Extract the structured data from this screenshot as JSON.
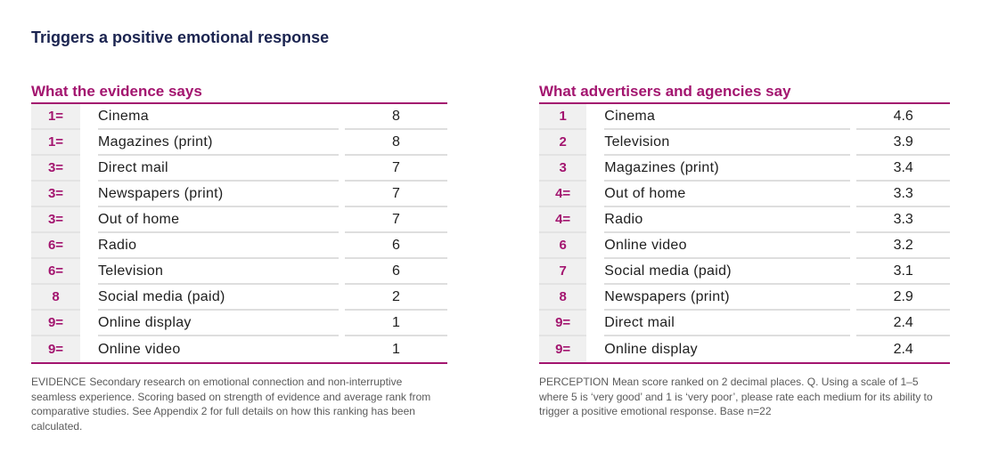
{
  "title": "Triggers a positive emotional response",
  "evidence": {
    "heading": "What the evidence says",
    "rows": [
      {
        "rank": "1=",
        "medium": "Cinema",
        "score": "8"
      },
      {
        "rank": "1=",
        "medium": "Magazines (print)",
        "score": "8"
      },
      {
        "rank": "3=",
        "medium": "Direct mail",
        "score": "7"
      },
      {
        "rank": "3=",
        "medium": "Newspapers (print)",
        "score": "7"
      },
      {
        "rank": "3=",
        "medium": "Out of home",
        "score": "7"
      },
      {
        "rank": "6=",
        "medium": "Radio",
        "score": "6"
      },
      {
        "rank": "6=",
        "medium": "Television",
        "score": "6"
      },
      {
        "rank": "8",
        "medium": "Social media (paid)",
        "score": "2"
      },
      {
        "rank": "9=",
        "medium": "Online display",
        "score": "1"
      },
      {
        "rank": "9=",
        "medium": "Online video",
        "score": "1"
      }
    ],
    "footnote_tag": "EVIDENCE",
    "footnote": "Secondary research on emotional connection and non-interruptive seamless experience. Scoring based on strength of evidence and average rank from comparative studies. See Appendix 2 for full details on how this ranking has been calculated."
  },
  "perception": {
    "heading": "What advertisers and agencies say",
    "rows": [
      {
        "rank": "1",
        "medium": "Cinema",
        "score": "4.6"
      },
      {
        "rank": "2",
        "medium": "Television",
        "score": "3.9"
      },
      {
        "rank": "3",
        "medium": "Magazines (print)",
        "score": "3.4"
      },
      {
        "rank": "4=",
        "medium": "Out of home",
        "score": "3.3"
      },
      {
        "rank": "4=",
        "medium": "Radio",
        "score": "3.3"
      },
      {
        "rank": "6",
        "medium": "Online video",
        "score": "3.2"
      },
      {
        "rank": "7",
        "medium": "Social media (paid)",
        "score": "3.1"
      },
      {
        "rank": "8",
        "medium": "Newspapers (print)",
        "score": "2.9"
      },
      {
        "rank": "9=",
        "medium": "Direct mail",
        "score": "2.4"
      },
      {
        "rank": "9=",
        "medium": "Online display",
        "score": "2.4"
      }
    ],
    "footnote_tag": "PERCEPTION",
    "footnote": "Mean score ranked on 2 decimal places. Q. Using a scale of 1–5 where 5 is ‘very good’ and 1 is ‘very poor’, please rate each medium for its ability to trigger a positive emotional response. Base n=22"
  },
  "colors": {
    "title": "#1b2450",
    "accent": "#a3156f",
    "rank_bg": "#f0f0f0",
    "row_rule": "#dedede"
  }
}
